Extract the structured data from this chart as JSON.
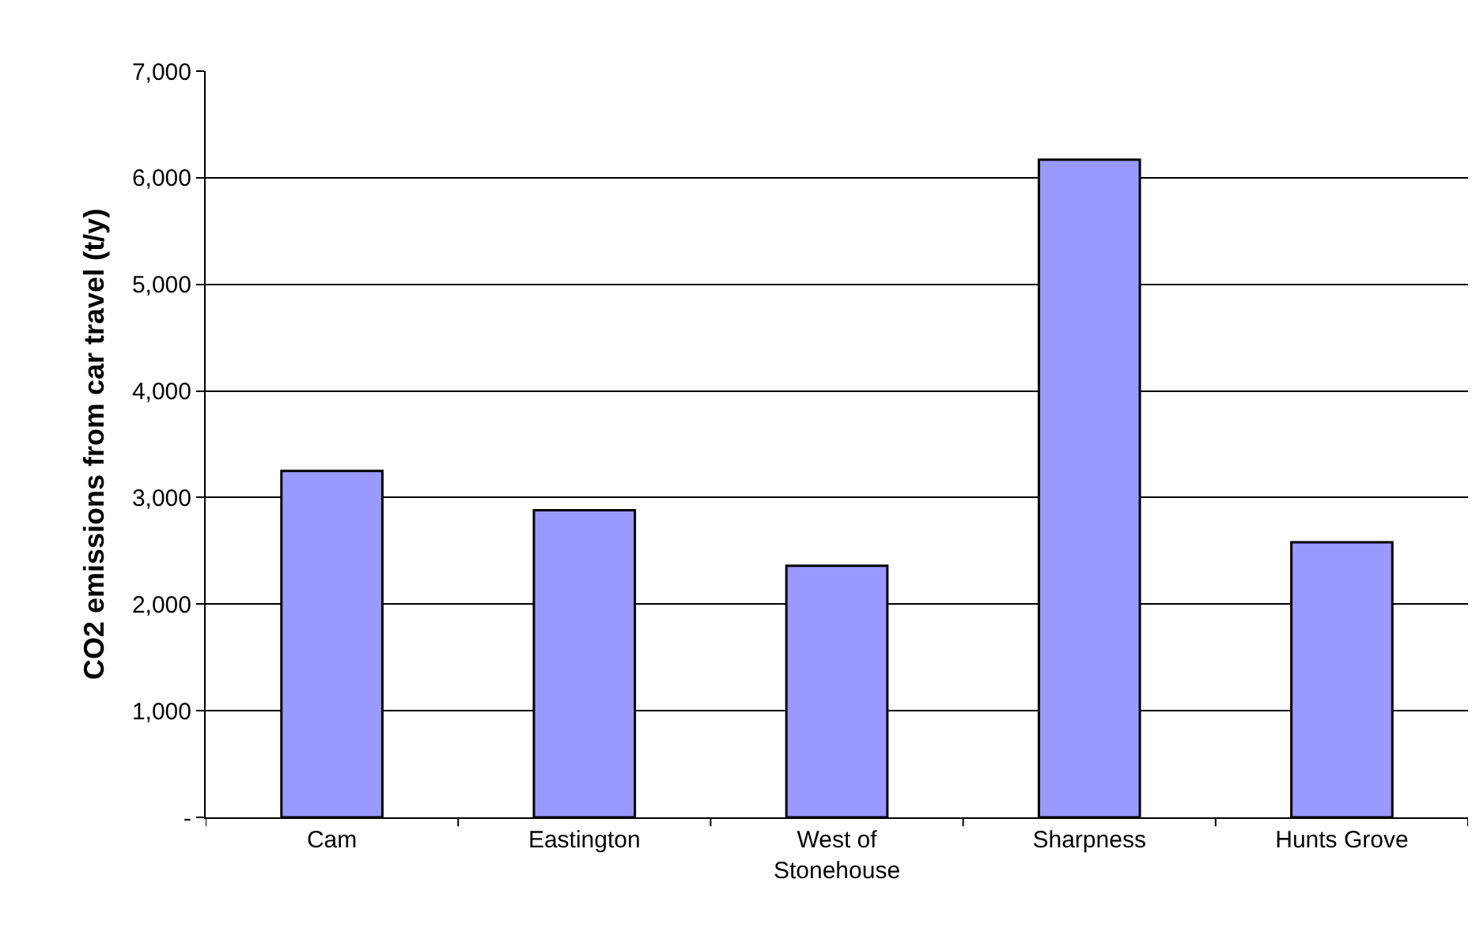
{
  "chart_data": {
    "type": "bar",
    "ylabel": "CO2 emissions from car travel (t/y)",
    "categories": [
      "Cam",
      "Eastington",
      "West of\nStonehouse",
      "Sharpness",
      "Hunts Grove"
    ],
    "values": [
      3250,
      2880,
      2360,
      6170,
      2580
    ],
    "color": "#9999ff",
    "ylim": [
      0,
      7000
    ],
    "yticks": [
      {
        "value": 0,
        "label": "-"
      },
      {
        "value": 1000,
        "label": "1,000"
      },
      {
        "value": 2000,
        "label": "2,000"
      },
      {
        "value": 3000,
        "label": "3,000"
      },
      {
        "value": 4000,
        "label": "4,000"
      },
      {
        "value": 5000,
        "label": "5,000"
      },
      {
        "value": 6000,
        "label": "6,000"
      },
      {
        "value": 7000,
        "label": "7,000"
      }
    ],
    "grid": "y"
  }
}
